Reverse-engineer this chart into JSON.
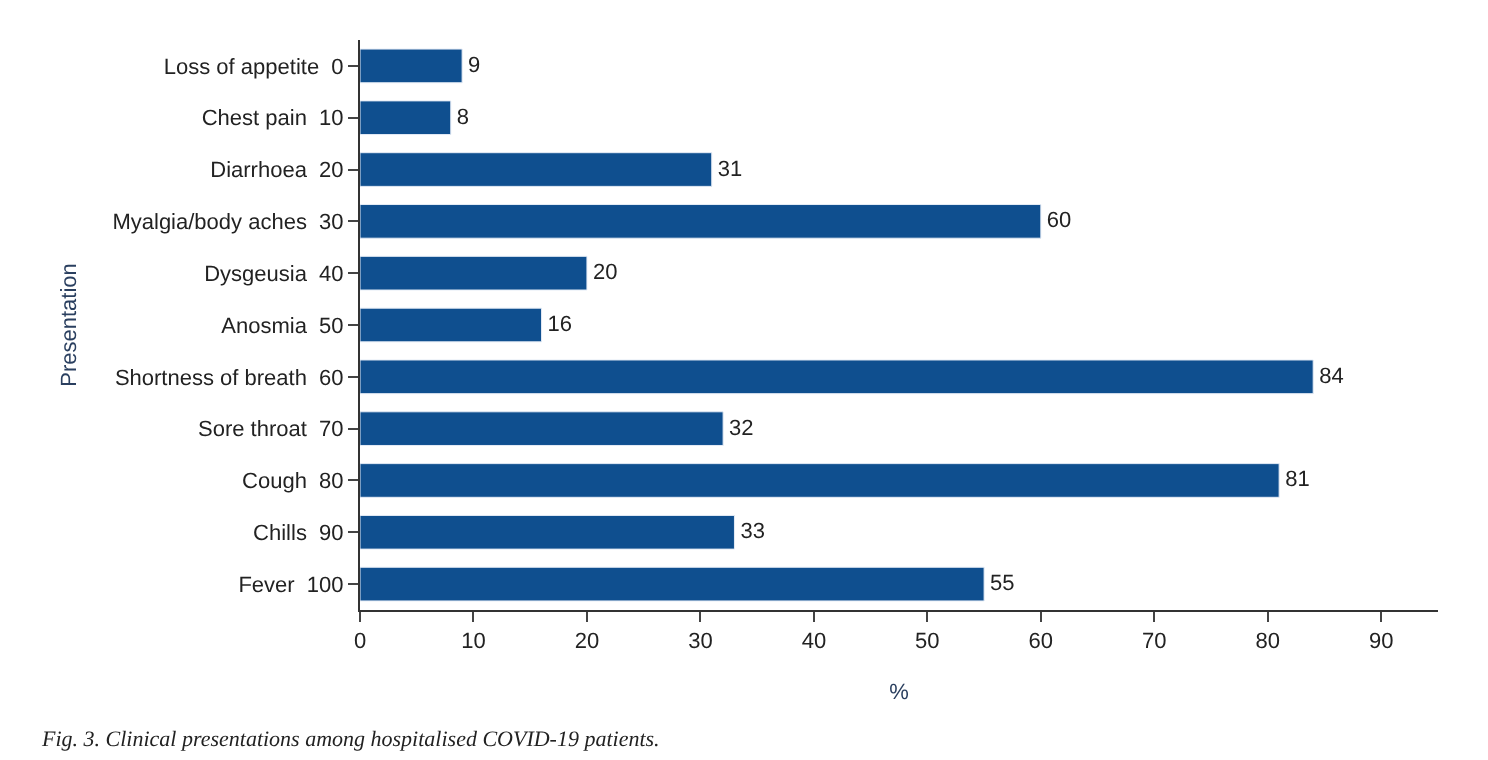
{
  "chart_data": {
    "type": "bar",
    "orientation": "horizontal",
    "categories": [
      "Loss of appetite  0",
      "Chest pain  10",
      "Diarrhoea  20",
      "Myalgia/body aches  30",
      "Dysgeusia  40",
      "Anosmia  50",
      "Shortness of breath  60",
      "Sore throat  70",
      "Cough  80",
      "Chills  90",
      "Fever  100"
    ],
    "values": [
      9,
      8,
      31,
      60,
      20,
      16,
      84,
      32,
      81,
      33,
      55
    ],
    "color": "#0f4f8f",
    "data_labels": true,
    "xlim": [
      0,
      95
    ],
    "xticks": [
      0,
      10,
      20,
      30,
      40,
      50,
      60,
      70,
      80,
      90
    ],
    "xlabel": "%",
    "ylabel": "Presentation",
    "annotations": [
      "Fig. 3. Clinical presentations among hospitalised COVID-19 patients."
    ]
  }
}
